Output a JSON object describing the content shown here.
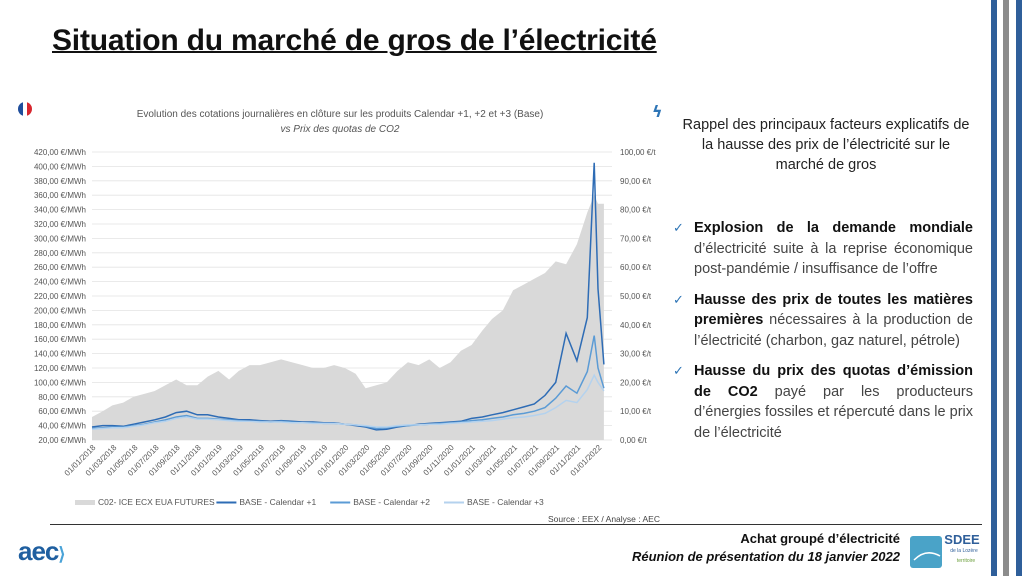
{
  "title": "Situation du marché de gros de l’électricité",
  "chart_data": {
    "type": "area+line",
    "title": "Evolution des cotations journalières en clôture sur les produits Calendar +1, +2 et +3 (Base)",
    "subtitle": "vs Prix des quotas de CO2",
    "y_left": {
      "ylim": [
        20,
        420
      ],
      "ticks": [
        "420,00 €/MWh",
        "400,00 €/MWh",
        "380,00 €/MWh",
        "360,00 €/MWh",
        "340,00 €/MWh",
        "320,00 €/MWh",
        "300,00 €/MWh",
        "280,00 €/MWh",
        "260,00 €/MWh",
        "240,00 €/MWh",
        "220,00 €/MWh",
        "200,00 €/MWh",
        "180,00 €/MWh",
        "160,00 €/MWh",
        "140,00 €/MWh",
        "120,00 €/MWh",
        "100,00 €/MWh",
        "80,00 €/MWh",
        "60,00 €/MWh",
        "40,00 €/MWh",
        "20,00 €/MWh"
      ]
    },
    "y_right": {
      "ylim": [
        0,
        100
      ],
      "ticks": [
        "100,00 €/t",
        "90,00 €/t",
        "80,00 €/t",
        "70,00 €/t",
        "60,00 €/t",
        "50,00 €/t",
        "40,00 €/t",
        "30,00 €/t",
        "20,00 €/t",
        "10,00 €/t",
        "0,00 €/t"
      ]
    },
    "x_ticks": [
      "01/01/2018",
      "01/03/2018",
      "01/05/2018",
      "01/07/2018",
      "01/09/2018",
      "01/11/2018",
      "01/01/2019",
      "01/03/2019",
      "01/05/2019",
      "01/07/2019",
      "01/09/2019",
      "01/11/2019",
      "01/01/2020",
      "01/03/2020",
      "01/05/2020",
      "01/07/2020",
      "01/09/2020",
      "01/11/2020",
      "01/01/2021",
      "01/03/2021",
      "01/05/2021",
      "01/07/2021",
      "01/09/2021",
      "01/11/2021",
      "01/01/2022"
    ],
    "grid": true,
    "legend_position": "bottom",
    "x": [
      "2018-01-01",
      "2018-02-01",
      "2018-03-01",
      "2018-04-01",
      "2018-05-01",
      "2018-06-01",
      "2018-07-01",
      "2018-08-01",
      "2018-09-01",
      "2018-10-01",
      "2018-11-01",
      "2018-12-01",
      "2019-01-01",
      "2019-02-01",
      "2019-03-01",
      "2019-04-01",
      "2019-05-01",
      "2019-06-01",
      "2019-07-01",
      "2019-08-01",
      "2019-09-01",
      "2019-10-01",
      "2019-11-01",
      "2019-12-01",
      "2020-01-01",
      "2020-02-01",
      "2020-03-01",
      "2020-04-01",
      "2020-05-01",
      "2020-06-01",
      "2020-07-01",
      "2020-08-01",
      "2020-09-01",
      "2020-10-01",
      "2020-11-01",
      "2020-12-01",
      "2021-01-01",
      "2021-02-01",
      "2021-03-01",
      "2021-04-01",
      "2021-05-01",
      "2021-06-01",
      "2021-07-01",
      "2021-08-01",
      "2021-09-01",
      "2021-10-01",
      "2021-11-01",
      "2021-12-01",
      "2021-12-21",
      "2022-01-01",
      "2022-01-18"
    ],
    "series": [
      {
        "name": "C02- ICE ECX EUA FUTURES",
        "axis": "right",
        "kind": "area",
        "color": "#d9d9d9",
        "values": [
          8,
          10,
          12,
          13,
          15,
          16,
          17,
          19,
          21,
          19,
          19,
          22,
          24,
          21,
          24,
          26,
          26,
          27,
          28,
          27,
          26,
          25,
          25,
          26,
          25,
          23,
          18,
          19,
          20,
          24,
          27,
          26,
          28,
          25,
          27,
          31,
          33,
          38,
          42,
          45,
          52,
          54,
          56,
          58,
          62,
          61,
          68,
          79,
          85,
          82,
          82
        ]
      },
      {
        "name": "BASE - Calendar +1",
        "axis": "left",
        "kind": "line",
        "color": "#2e6cb5",
        "values": [
          38,
          40,
          40,
          39,
          42,
          45,
          48,
          52,
          58,
          60,
          55,
          55,
          52,
          50,
          48,
          48,
          47,
          46,
          47,
          46,
          45,
          45,
          44,
          44,
          42,
          40,
          38,
          34,
          35,
          38,
          40,
          42,
          43,
          44,
          45,
          46,
          50,
          52,
          55,
          58,
          62,
          66,
          70,
          82,
          100,
          168,
          130,
          190,
          405,
          230,
          125
        ]
      },
      {
        "name": "BASE - Calendar +2",
        "axis": "left",
        "kind": "line",
        "color": "#5b9bd5",
        "values": [
          36,
          37,
          38,
          38,
          40,
          42,
          45,
          48,
          52,
          54,
          50,
          50,
          49,
          48,
          47,
          46,
          46,
          45,
          46,
          45,
          44,
          44,
          43,
          43,
          42,
          41,
          39,
          36,
          37,
          39,
          40,
          41,
          42,
          43,
          44,
          45,
          47,
          48,
          50,
          52,
          55,
          57,
          60,
          65,
          78,
          95,
          85,
          115,
          165,
          120,
          92
        ]
      },
      {
        "name": "BASE - Calendar +3",
        "axis": "left",
        "kind": "line",
        "color": "#b4d2ee",
        "values": [
          35,
          36,
          37,
          37,
          39,
          41,
          44,
          46,
          50,
          52,
          49,
          49,
          48,
          47,
          46,
          46,
          45,
          45,
          45,
          44,
          44,
          43,
          43,
          43,
          42,
          41,
          40,
          38,
          38,
          40,
          41,
          41,
          42,
          42,
          43,
          44,
          45,
          46,
          47,
          49,
          51,
          52,
          54,
          57,
          65,
          75,
          72,
          90,
          110,
          100,
          88
        ]
      }
    ],
    "source": "Source : EEX / Analyse : AEC"
  },
  "right_panel": {
    "title": "Rappel des principaux facteurs explicatifs de la hausse des prix de l’électricité sur le marché de gros",
    "bullets": [
      {
        "bold": "Explosion de la demande mondiale",
        "text": " d’électricité suite à la reprise économique post-pandémie / insuffisance de l’offre"
      },
      {
        "bold": "Hausse des prix de toutes les matières premières",
        "text": " nécessaires à la production de l’électricité (charbon, gaz naturel, pétrole)"
      },
      {
        "bold": "Hausse du prix des quotas d’émission de CO2",
        "text": " payé par les producteurs d’énergies fossiles et répercuté dans le prix de l’électricité"
      }
    ]
  },
  "footer": {
    "logo_left": "aec",
    "line1": "Achat groupé d’électricité",
    "line2": "Réunion de présentation du 18 janvier 2022",
    "logo_right": "SDEE de la Lozère territoire d'énergie"
  },
  "colors": {
    "accent": "#2e75b6",
    "stripe_blue": "#2f5f9a",
    "stripe_gray": "#8c8c8c"
  }
}
